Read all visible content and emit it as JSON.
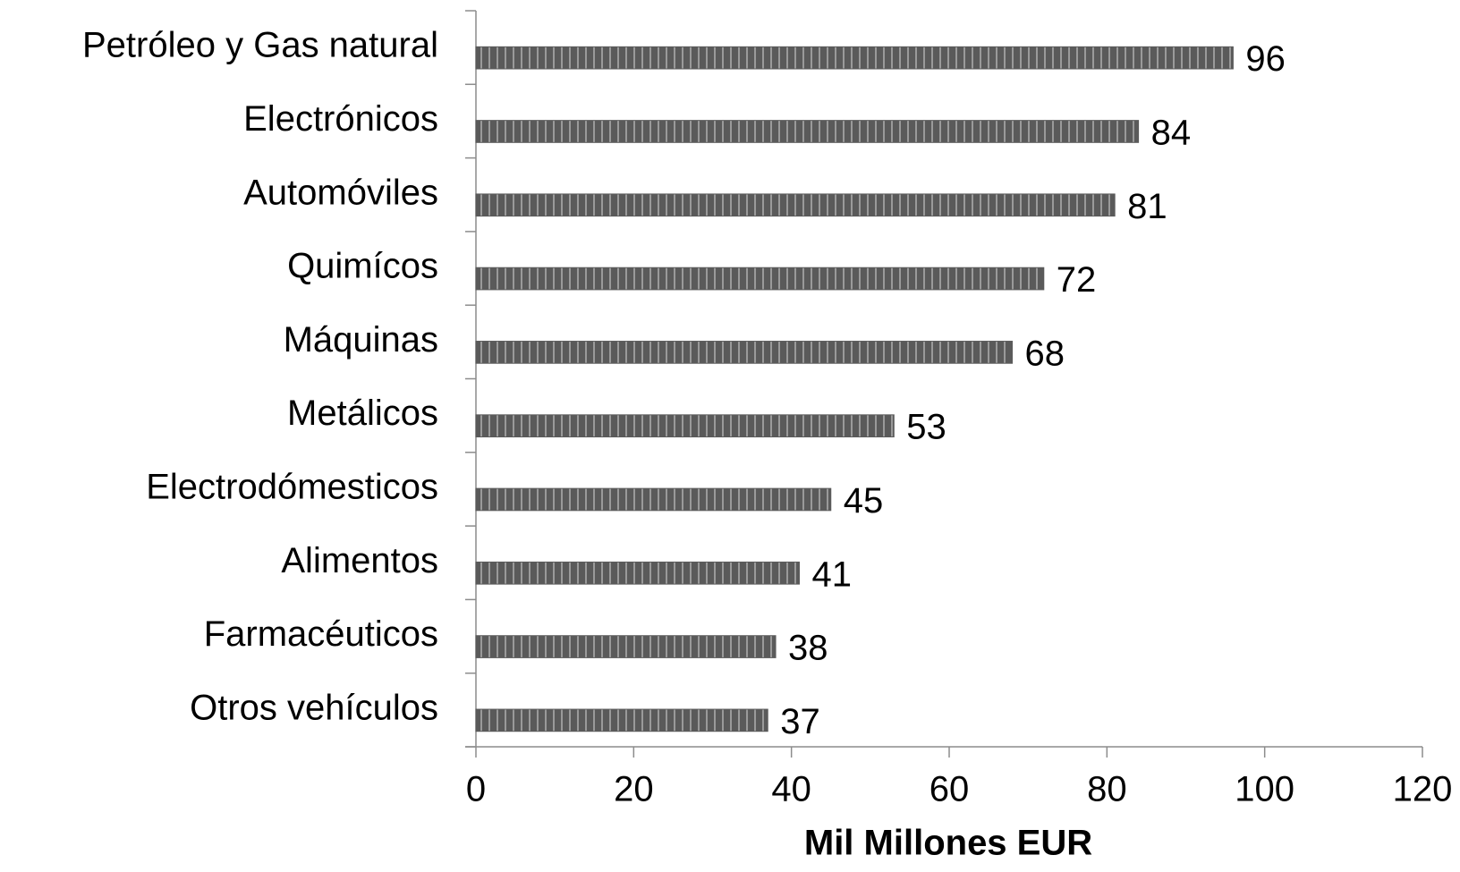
{
  "chart_data": {
    "type": "barh",
    "categories": [
      "Petróleo y Gas natural",
      "Electrónicos",
      "Automóviles",
      "Quimícos",
      "Máquinas",
      "Metálicos",
      "Electrodómesticos",
      "Alimentos",
      "Farmacéuticos",
      "Otros vehículos"
    ],
    "values": [
      96,
      84,
      81,
      72,
      68,
      53,
      45,
      41,
      38,
      37
    ],
    "color": "#5a5a5a",
    "xlabel": "Mil Millones EUR",
    "xlim": [
      0,
      120
    ],
    "xticks": [
      0,
      20,
      40,
      60,
      80,
      100,
      120
    ],
    "grid": false
  }
}
